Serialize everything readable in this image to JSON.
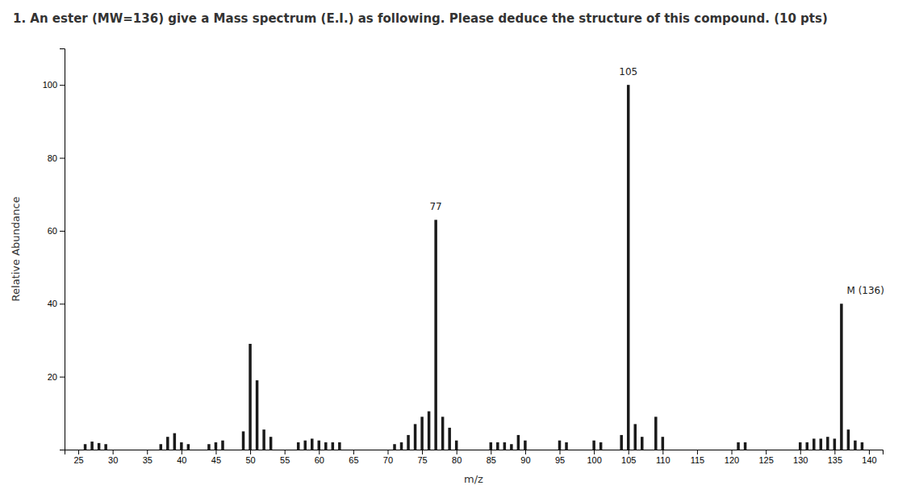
{
  "chart_data": {
    "type": "bar",
    "title": "1. An ester (MW=136) give a Mass spectrum (E.I.) as following. Please deduce the structure of this compound. (10 pts)",
    "x_label": "m/z",
    "y_label": "Relative Abundance",
    "x": [
      26,
      27,
      28,
      29,
      37,
      38,
      39,
      40,
      41,
      44,
      45,
      46,
      49,
      50,
      51,
      52,
      53,
      57,
      58,
      59,
      60,
      61,
      62,
      63,
      71,
      72,
      73,
      74,
      75,
      76,
      77,
      78,
      79,
      80,
      85,
      86,
      87,
      88,
      89,
      90,
      95,
      96,
      100,
      101,
      104,
      105,
      106,
      107,
      109,
      110,
      121,
      122,
      130,
      131,
      132,
      133,
      134,
      135,
      136,
      137,
      138,
      139
    ],
    "values": [
      1.5,
      2.2,
      1.8,
      1.5,
      1.5,
      3.5,
      4.5,
      2.0,
      1.5,
      1.5,
      2.0,
      2.5,
      5.0,
      29,
      19,
      5.5,
      3.5,
      2.0,
      2.5,
      3.0,
      2.5,
      2.0,
      2.0,
      2.0,
      1.5,
      2.0,
      4.0,
      7.0,
      9.0,
      10.5,
      63,
      9.0,
      6.0,
      2.5,
      2.0,
      2.0,
      2.0,
      1.5,
      4.0,
      2.5,
      2.5,
      2.0,
      2.5,
      2.0,
      4.0,
      100,
      7.0,
      3.5,
      9.0,
      3.5,
      2.0,
      2.0,
      2.0,
      2.0,
      3.0,
      3.0,
      3.5,
      3.0,
      40,
      5.5,
      2.5,
      2.0
    ],
    "color": "#1a1a1a",
    "xlim": [
      23,
      142
    ],
    "ylim": [
      0,
      110
    ],
    "xticks": [
      25,
      30,
      35,
      40,
      45,
      50,
      55,
      60,
      65,
      70,
      75,
      80,
      85,
      90,
      95,
      100,
      105,
      110,
      115,
      120,
      125,
      130,
      135,
      140
    ],
    "yticks": [
      20,
      40,
      60,
      80,
      100
    ],
    "grid": false,
    "annotations": [
      {
        "text": "77",
        "x": 77,
        "y": 65
      },
      {
        "text": "105",
        "x": 105,
        "y": 102
      },
      {
        "text": "M (136)",
        "x": 139.5,
        "y": 42
      }
    ]
  }
}
